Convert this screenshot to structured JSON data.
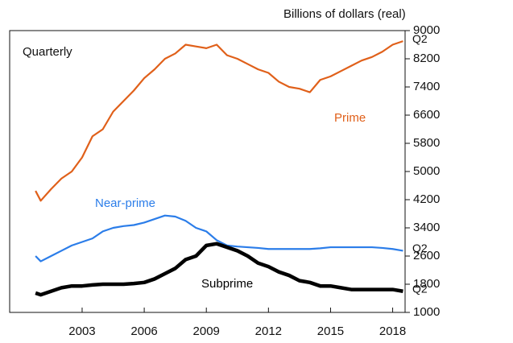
{
  "chart_data": {
    "type": "line",
    "annotations": [
      "Quarterly"
    ],
    "ylabel": "Billions of dollars (real)",
    "x": [
      2000.75,
      2001,
      2001.5,
      2002,
      2002.5,
      2003,
      2003.5,
      2004,
      2004.5,
      2005,
      2005.5,
      2006,
      2006.5,
      2007,
      2007.5,
      2008,
      2008.5,
      2009,
      2009.5,
      2010,
      2010.5,
      2011,
      2011.5,
      2012,
      2012.5,
      2013,
      2013.5,
      2014,
      2014.5,
      2015,
      2015.5,
      2016,
      2016.5,
      2017,
      2017.5,
      2018,
      2018.5
    ],
    "series": [
      {
        "name": "Prime",
        "color": "#e0601a",
        "end_label": "Q2",
        "values": [
          4450,
          4170,
          4500,
          4800,
          5000,
          5400,
          6000,
          6200,
          6700,
          7000,
          7300,
          7650,
          7900,
          8200,
          8350,
          8600,
          8550,
          8500,
          8600,
          8300,
          8200,
          8050,
          7900,
          7800,
          7550,
          7400,
          7350,
          7250,
          7600,
          7700,
          7850,
          8000,
          8150,
          8250,
          8400,
          8600,
          8700
        ]
      },
      {
        "name": "Near-prime",
        "color": "#2b7de9",
        "end_label": "Q2",
        "values": [
          2600,
          2450,
          2600,
          2750,
          2900,
          3000,
          3100,
          3300,
          3400,
          3450,
          3480,
          3550,
          3650,
          3750,
          3720,
          3600,
          3400,
          3300,
          3050,
          2900,
          2870,
          2850,
          2830,
          2800,
          2800,
          2800,
          2800,
          2800,
          2820,
          2850,
          2850,
          2850,
          2850,
          2850,
          2830,
          2800,
          2750
        ]
      },
      {
        "name": "Subprime",
        "color": "#000000",
        "end_label": "Q2",
        "values": [
          1550,
          1500,
          1600,
          1700,
          1750,
          1750,
          1780,
          1800,
          1800,
          1800,
          1820,
          1850,
          1950,
          2100,
          2250,
          2500,
          2600,
          2900,
          2950,
          2850,
          2750,
          2600,
          2400,
          2300,
          2150,
          2050,
          1900,
          1850,
          1750,
          1750,
          1700,
          1650,
          1650,
          1650,
          1650,
          1650,
          1600
        ]
      }
    ],
    "xlim": [
      1999.5,
      2018.6
    ],
    "xticks": [
      2003,
      2006,
      2009,
      2012,
      2015,
      2018
    ],
    "ylim": [
      1000,
      9000
    ],
    "yticks": [
      1000,
      1800,
      2600,
      3400,
      4200,
      5000,
      5800,
      6600,
      7400,
      8200,
      9000
    ]
  }
}
